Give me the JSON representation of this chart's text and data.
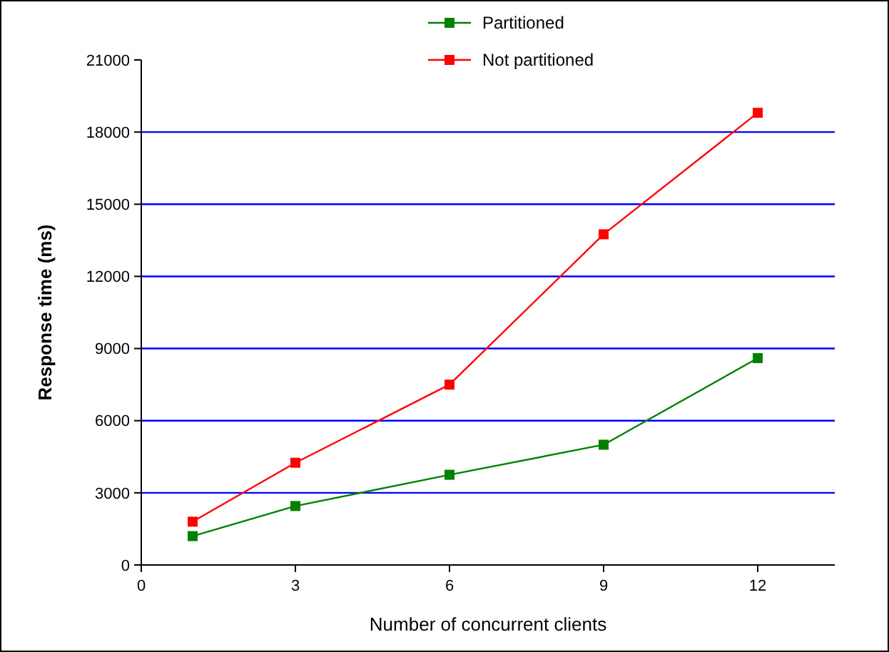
{
  "chart_data": {
    "type": "line",
    "xlabel": "Number of concurrent clients",
    "ylabel": "Response time (ms)",
    "x": [
      1,
      3,
      6,
      9,
      12
    ],
    "series": [
      {
        "name": "Partitioned",
        "color": "#008000",
        "values": [
          1200,
          2450,
          3750,
          5000,
          8600
        ]
      },
      {
        "name": "Not partitioned",
        "color": "#ff0000",
        "values": [
          1800,
          4250,
          7500,
          13750,
          18800
        ]
      }
    ],
    "xlim": [
      0,
      13.5
    ],
    "xticks": [
      0,
      3,
      6,
      9,
      12
    ],
    "ylim": [
      0,
      21000
    ],
    "yticks": [
      0,
      3000,
      6000,
      9000,
      12000,
      15000,
      18000,
      21000
    ],
    "grid": "y",
    "legend": "top",
    "marker": "square",
    "line_style": "solid"
  }
}
